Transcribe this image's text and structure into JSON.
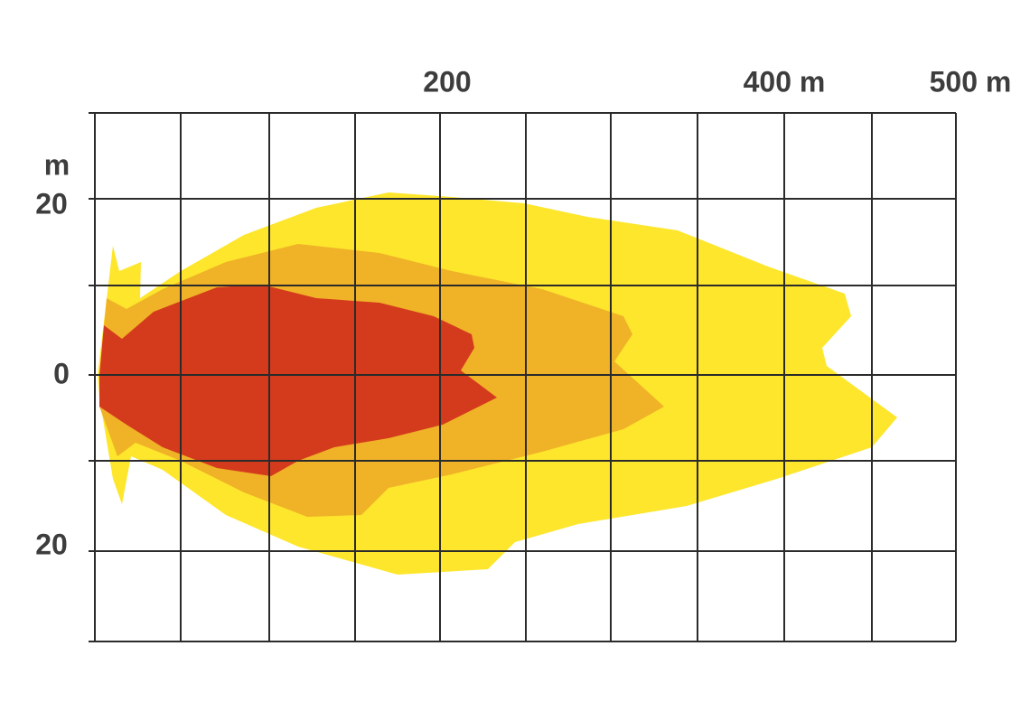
{
  "top_labels": [
    "200",
    "400 m",
    "500 m"
  ],
  "left_unit": "m",
  "left_labels": [
    "20",
    "0",
    "20"
  ]
}
